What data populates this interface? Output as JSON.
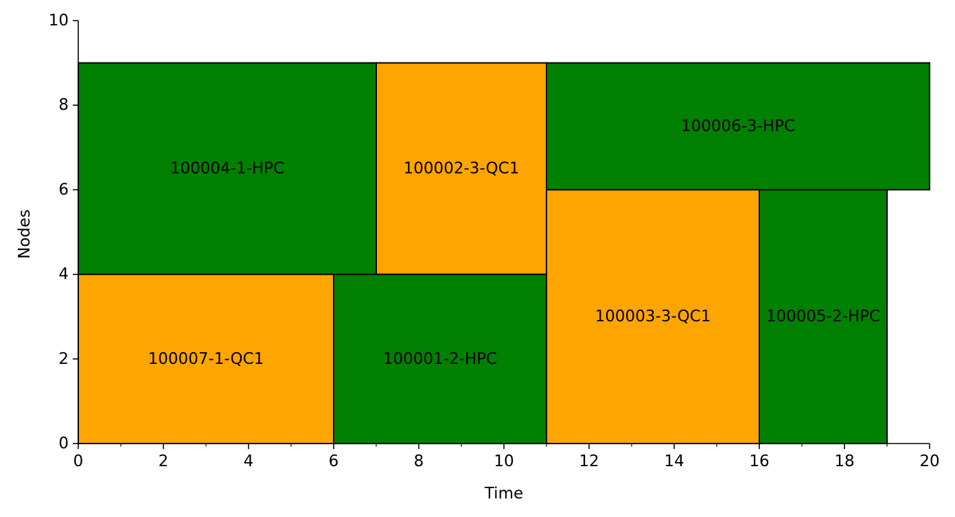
{
  "chart_data": {
    "type": "gantt",
    "title": "",
    "xlabel": "Time",
    "ylabel": "Nodes",
    "xlim": [
      0,
      20
    ],
    "ylim": [
      0,
      10
    ],
    "xticks": [
      0,
      2,
      4,
      6,
      8,
      10,
      12,
      14,
      16,
      18,
      20
    ],
    "xticks_minor": [
      1,
      3,
      5,
      7,
      9,
      11,
      13,
      15,
      17,
      19
    ],
    "yticks": [
      0,
      2,
      4,
      6,
      8,
      10
    ],
    "grid": false,
    "colors": {
      "HPC": "#008000",
      "QC1": "#ffa500",
      "edge": "#000000"
    },
    "jobs": [
      {
        "label": "100004-1-HPC",
        "type": "HPC",
        "start": 0,
        "end": 7,
        "node_start": 4,
        "node_end": 9
      },
      {
        "label": "100002-3-QC1",
        "type": "QC1",
        "start": 7,
        "end": 11,
        "node_start": 4,
        "node_end": 9
      },
      {
        "label": "100006-3-HPC",
        "type": "HPC",
        "start": 11,
        "end": 20,
        "node_start": 6,
        "node_end": 9
      },
      {
        "label": "100007-1-QC1",
        "type": "QC1",
        "start": 0,
        "end": 6,
        "node_start": 0,
        "node_end": 4
      },
      {
        "label": "100001-2-HPC",
        "type": "HPC",
        "start": 6,
        "end": 11,
        "node_start": 0,
        "node_end": 4
      },
      {
        "label": "100003-3-QC1",
        "type": "QC1",
        "start": 11,
        "end": 16,
        "node_start": 0,
        "node_end": 6
      },
      {
        "label": "100005-2-HPC",
        "type": "HPC",
        "start": 16,
        "end": 19,
        "node_start": 0,
        "node_end": 6
      }
    ]
  }
}
